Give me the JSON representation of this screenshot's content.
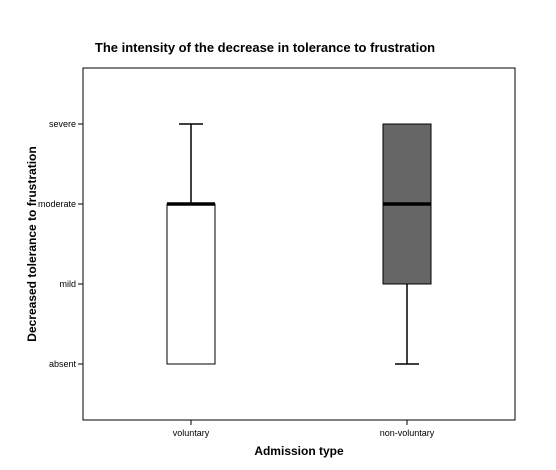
{
  "chart_data": {
    "type": "boxplot",
    "title": "The intensity of the decrease in tolerance to frustration",
    "xlabel": "Admission type",
    "ylabel": "Decreased tolerance to frustration",
    "y_categories": [
      "absent",
      "mild",
      "moderate",
      "severe"
    ],
    "y_values": [
      0,
      1,
      2,
      3
    ],
    "ylim": [
      -0.7,
      3.7
    ],
    "categories": [
      "voluntary",
      "non-voluntary"
    ],
    "boxes": [
      {
        "category": "voluntary",
        "min": 0,
        "q1": 0,
        "median": 2,
        "q3": 2,
        "max": 3,
        "fill": "#ffffff"
      },
      {
        "category": "non-voluntary",
        "min": 0,
        "q1": 1,
        "median": 2,
        "q3": 3,
        "max": 3,
        "fill": "#666666"
      }
    ],
    "grid": false,
    "legend": "none"
  }
}
